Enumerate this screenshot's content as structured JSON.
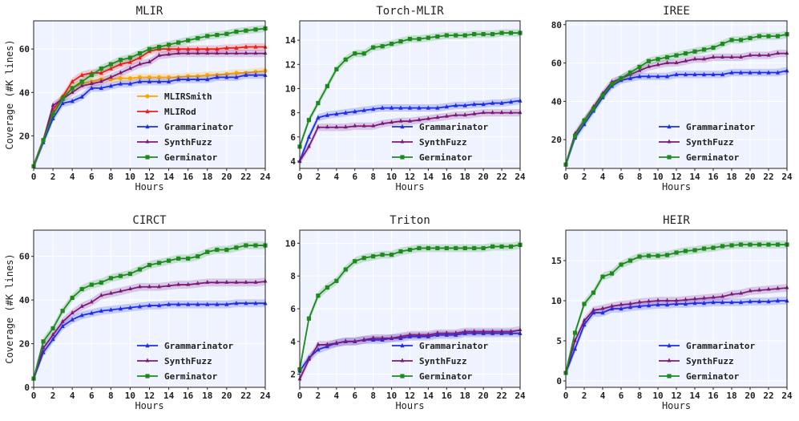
{
  "colors": {
    "MLIRSmith": "#ffa500",
    "MLIRod": "#ee1c1c",
    "Grammarinator": "#1f2ee8",
    "SynthFuzz": "#7b1a7b",
    "Germinator": "#1e8a1e",
    "plot_background": "#eef3ff",
    "grid": "#ffffff"
  },
  "chart_data": [
    {
      "type": "line",
      "title": "MLIR",
      "xlabel": "Hours",
      "ylabel": "Coverage (#K lines)",
      "xlim": [
        0,
        24
      ],
      "ylim": [
        5,
        73
      ],
      "xticks": [
        0,
        2,
        4,
        6,
        8,
        10,
        12,
        14,
        16,
        18,
        20,
        22,
        24
      ],
      "yticks": [
        20,
        40,
        60
      ],
      "legend_position": "bottom-right",
      "grid": true,
      "x": [
        0,
        1,
        2,
        3,
        4,
        5,
        6,
        7,
        8,
        9,
        10,
        11,
        12,
        13,
        14,
        15,
        16,
        17,
        18,
        19,
        20,
        21,
        22,
        23,
        24
      ],
      "series": [
        {
          "name": "MLIRSmith",
          "values": [
            6,
            18,
            30,
            38,
            42,
            44,
            45,
            46,
            46,
            46.5,
            46.5,
            47,
            47,
            47,
            47,
            47,
            47.5,
            47.5,
            48,
            48,
            48.5,
            49,
            49,
            49.5,
            50
          ]
        },
        {
          "name": "MLIRod",
          "values": [
            6,
            18,
            32,
            38,
            45,
            48,
            49,
            49,
            51,
            53,
            54,
            56,
            59,
            60,
            60,
            60,
            60,
            60,
            60,
            60,
            60.5,
            60.5,
            61,
            61,
            61
          ]
        },
        {
          "name": "Grammarinator",
          "values": [
            6,
            17,
            28,
            35,
            36,
            38,
            42,
            42,
            43,
            44,
            44,
            45,
            45,
            45,
            45,
            46,
            46,
            46,
            46,
            47,
            47,
            47,
            48,
            48,
            48
          ]
        },
        {
          "name": "SynthFuzz",
          "values": [
            6,
            18,
            34,
            37,
            40,
            43,
            44,
            45,
            47,
            49,
            51,
            53,
            54,
            57,
            57.5,
            58,
            58,
            58,
            58,
            58,
            58,
            58,
            58,
            58,
            58
          ]
        },
        {
          "name": "Germinator",
          "values": [
            6,
            18,
            30,
            37,
            42,
            45,
            48,
            51,
            53,
            55,
            56,
            58,
            60,
            61,
            62,
            63,
            64,
            65,
            66,
            66.5,
            67,
            68,
            68.5,
            69,
            69.5
          ]
        }
      ]
    },
    {
      "type": "line",
      "title": "Torch-MLIR",
      "xlabel": "Hours",
      "ylabel": "",
      "xlim": [
        0,
        24
      ],
      "ylim": [
        3.4,
        15.6
      ],
      "xticks": [
        0,
        2,
        4,
        6,
        8,
        10,
        12,
        14,
        16,
        18,
        20,
        22,
        24
      ],
      "yticks": [
        4,
        6,
        8,
        10,
        12,
        14
      ],
      "legend_position": "bottom-right",
      "grid": true,
      "x": [
        0,
        1,
        2,
        3,
        4,
        5,
        6,
        7,
        8,
        9,
        10,
        11,
        12,
        13,
        14,
        15,
        16,
        17,
        18,
        19,
        20,
        21,
        22,
        23,
        24
      ],
      "series": [
        {
          "name": "Grammarinator",
          "values": [
            4,
            6,
            7.6,
            7.8,
            7.9,
            8,
            8.1,
            8.2,
            8.3,
            8.4,
            8.4,
            8.4,
            8.4,
            8.4,
            8.4,
            8.4,
            8.5,
            8.6,
            8.6,
            8.7,
            8.7,
            8.8,
            8.8,
            8.9,
            9
          ]
        },
        {
          "name": "SynthFuzz",
          "values": [
            4,
            5.2,
            6.8,
            6.8,
            6.8,
            6.8,
            6.9,
            6.9,
            6.9,
            7.1,
            7.2,
            7.3,
            7.3,
            7.4,
            7.5,
            7.6,
            7.7,
            7.8,
            7.8,
            7.9,
            8,
            8,
            8,
            8,
            8
          ]
        },
        {
          "name": "Germinator",
          "values": [
            5.2,
            7.4,
            8.8,
            10.2,
            11.6,
            12.4,
            12.9,
            12.9,
            13.4,
            13.5,
            13.7,
            13.9,
            14.1,
            14.1,
            14.2,
            14.3,
            14.4,
            14.4,
            14.4,
            14.5,
            14.5,
            14.5,
            14.6,
            14.6,
            14.6
          ]
        }
      ]
    },
    {
      "type": "line",
      "title": "IREE",
      "xlabel": "Hours",
      "ylabel": "",
      "xlim": [
        0,
        24
      ],
      "ylim": [
        5,
        82
      ],
      "xticks": [
        0,
        2,
        4,
        6,
        8,
        10,
        12,
        14,
        16,
        18,
        20,
        22,
        24
      ],
      "yticks": [
        20,
        40,
        60,
        80
      ],
      "legend_position": "bottom-right",
      "grid": true,
      "x": [
        0,
        1,
        2,
        3,
        4,
        5,
        6,
        7,
        8,
        9,
        10,
        11,
        12,
        13,
        14,
        15,
        16,
        17,
        18,
        19,
        20,
        21,
        22,
        23,
        24
      ],
      "series": [
        {
          "name": "Grammarinator",
          "values": [
            7,
            21,
            28,
            35,
            42,
            48,
            51,
            52,
            53,
            53,
            53,
            53,
            54,
            54,
            54,
            54,
            54,
            54,
            55,
            55,
            55,
            55,
            55,
            55,
            56
          ]
        },
        {
          "name": "SynthFuzz",
          "values": [
            7,
            23,
            30,
            37,
            44,
            50,
            52,
            54,
            56,
            58,
            59,
            60,
            60,
            61,
            62,
            62,
            63,
            63,
            63,
            63,
            64,
            64,
            64,
            65,
            65
          ]
        },
        {
          "name": "Germinator",
          "values": [
            7,
            22,
            30,
            36,
            43,
            49,
            52,
            55,
            58,
            61,
            62,
            63,
            64,
            65,
            66,
            67,
            68,
            70,
            72,
            72,
            73,
            74,
            74,
            74,
            75
          ]
        }
      ]
    },
    {
      "type": "line",
      "title": "CIRCT",
      "xlabel": "Hours",
      "ylabel": "Coverage (#K lines)",
      "xlim": [
        0,
        24
      ],
      "ylim": [
        0,
        72
      ],
      "xticks": [
        0,
        2,
        4,
        6,
        8,
        10,
        12,
        14,
        16,
        18,
        20,
        22,
        24
      ],
      "yticks": [
        0,
        20,
        40,
        60
      ],
      "legend_position": "bottom-right",
      "grid": true,
      "x": [
        0,
        1,
        2,
        3,
        4,
        5,
        6,
        7,
        8,
        9,
        10,
        11,
        12,
        13,
        14,
        15,
        16,
        17,
        18,
        19,
        20,
        21,
        22,
        23,
        24
      ],
      "series": [
        {
          "name": "Grammarinator",
          "values": [
            4,
            16,
            22,
            28,
            31,
            33,
            34,
            35,
            35.5,
            36,
            36.5,
            37,
            37.5,
            37.5,
            38,
            38,
            38,
            38,
            38,
            38,
            38,
            38.5,
            38.5,
            38.5,
            38.5
          ]
        },
        {
          "name": "SynthFuzz",
          "values": [
            4,
            18,
            24,
            30,
            34,
            37,
            39,
            42,
            43,
            44,
            45,
            46,
            46,
            46,
            46.5,
            47,
            47,
            47.5,
            48,
            48,
            48,
            48,
            48,
            48,
            48.5
          ]
        },
        {
          "name": "Germinator",
          "values": [
            4,
            21,
            27,
            35,
            41,
            45,
            47,
            48,
            50,
            51,
            52,
            54,
            56,
            57,
            58,
            59,
            59,
            60,
            62,
            63,
            63,
            64,
            65,
            65,
            65
          ]
        }
      ]
    },
    {
      "type": "line",
      "title": "Triton",
      "xlabel": "Hours",
      "ylabel": "",
      "xlim": [
        0,
        24
      ],
      "ylim": [
        1.2,
        10.8
      ],
      "xticks": [
        0,
        2,
        4,
        6,
        8,
        10,
        12,
        14,
        16,
        18,
        20,
        22,
        24
      ],
      "yticks": [
        2,
        4,
        6,
        8,
        10
      ],
      "legend_position": "bottom-right",
      "grid": true,
      "x": [
        0,
        1,
        2,
        3,
        4,
        5,
        6,
        7,
        8,
        9,
        10,
        11,
        12,
        13,
        14,
        15,
        16,
        17,
        18,
        19,
        20,
        21,
        22,
        23,
        24
      ],
      "series": [
        {
          "name": "Grammarinator",
          "values": [
            2.2,
            3,
            3.5,
            3.7,
            3.9,
            4,
            4,
            4.1,
            4.1,
            4.1,
            4.2,
            4.2,
            4.3,
            4.3,
            4.3,
            4.4,
            4.4,
            4.4,
            4.5,
            4.5,
            4.5,
            4.5,
            4.5,
            4.5,
            4.5
          ]
        },
        {
          "name": "SynthFuzz",
          "values": [
            1.7,
            2.9,
            3.8,
            3.8,
            3.9,
            4,
            4,
            4.1,
            4.2,
            4.2,
            4.2,
            4.3,
            4.4,
            4.4,
            4.4,
            4.5,
            4.5,
            4.5,
            4.6,
            4.6,
            4.6,
            4.6,
            4.6,
            4.6,
            4.7
          ]
        },
        {
          "name": "Germinator",
          "values": [
            2.3,
            5.4,
            6.8,
            7.3,
            7.7,
            8.4,
            8.9,
            9.1,
            9.2,
            9.3,
            9.3,
            9.5,
            9.6,
            9.7,
            9.7,
            9.7,
            9.7,
            9.7,
            9.7,
            9.7,
            9.7,
            9.8,
            9.8,
            9.8,
            9.9
          ]
        }
      ]
    },
    {
      "type": "line",
      "title": "HEIR",
      "xlabel": "Hours",
      "ylabel": "",
      "xlim": [
        0,
        24
      ],
      "ylim": [
        -0.8,
        18.8
      ],
      "xticks": [
        0,
        2,
        4,
        6,
        8,
        10,
        12,
        14,
        16,
        18,
        20,
        22,
        24
      ],
      "yticks": [
        0,
        5,
        10,
        15
      ],
      "legend_position": "bottom-right",
      "grid": true,
      "x": [
        0,
        1,
        2,
        3,
        4,
        5,
        6,
        7,
        8,
        9,
        10,
        11,
        12,
        13,
        14,
        15,
        16,
        17,
        18,
        19,
        20,
        21,
        22,
        23,
        24
      ],
      "series": [
        {
          "name": "Grammarinator",
          "values": [
            1,
            4,
            7,
            8.5,
            8.5,
            9,
            9,
            9.2,
            9.3,
            9.4,
            9.5,
            9.5,
            9.6,
            9.6,
            9.7,
            9.7,
            9.8,
            9.8,
            9.8,
            9.8,
            9.9,
            9.9,
            9.9,
            10,
            10
          ]
        },
        {
          "name": "SynthFuzz",
          "values": [
            1,
            5,
            7.5,
            8.8,
            9,
            9.3,
            9.5,
            9.6,
            9.8,
            9.9,
            10,
            10,
            10,
            10.1,
            10.2,
            10.3,
            10.4,
            10.5,
            10.8,
            10.9,
            11.2,
            11.3,
            11.4,
            11.5,
            11.6
          ]
        },
        {
          "name": "Germinator",
          "values": [
            1,
            6,
            9.6,
            11,
            13,
            13.4,
            14.5,
            15,
            15.5,
            15.6,
            15.6,
            15.7,
            16,
            16.2,
            16.3,
            16.5,
            16.6,
            16.8,
            16.9,
            17,
            17,
            17,
            17,
            17,
            17
          ]
        }
      ]
    }
  ]
}
